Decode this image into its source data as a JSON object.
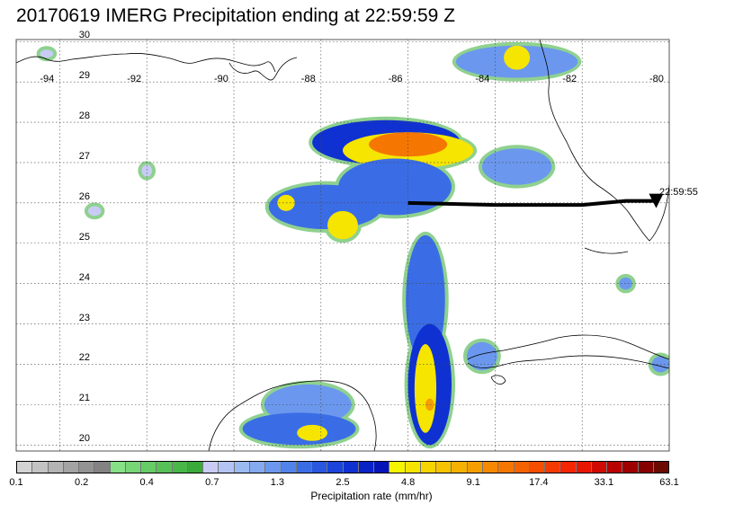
{
  "title": "20170619 IMERG Precipitation ending at 22:59:59 Z",
  "map": {
    "lon_min": -95,
    "lon_max": -80,
    "lat_min": 19.85,
    "lat_max": 30.05,
    "lon_labels": [
      "-94",
      "-92",
      "-90",
      "-88",
      "-86",
      "-84",
      "-82",
      "-80"
    ],
    "lat_labels": [
      "30",
      "29",
      "28",
      "27",
      "26",
      "25",
      "24",
      "23",
      "22",
      "21",
      "20"
    ],
    "gridlines": true,
    "track": {
      "time_label": "22:59:55",
      "points": [
        [
          -86.0,
          26.0
        ],
        [
          -84.0,
          25.95
        ],
        [
          -83.0,
          25.95
        ],
        [
          -82.0,
          25.95
        ],
        [
          -81.0,
          26.05
        ],
        [
          -80.3,
          26.05
        ]
      ],
      "end_marker": "triangle-down"
    }
  },
  "colorbar": {
    "label": "Precipitation rate (mm/hr)",
    "tick_labels": [
      "0.1",
      "0.2",
      "0.4",
      "0.7",
      "1.3",
      "2.5",
      "4.8",
      "9.1",
      "17.4",
      "33.1",
      "63.1"
    ],
    "colors": [
      "#d3d3d3",
      "#c3c3c3",
      "#b3b3b3",
      "#a3a3a3",
      "#939393",
      "#838383",
      "#86e086",
      "#76d676",
      "#66cc66",
      "#57c157",
      "#48b748",
      "#3aaa3a",
      "#c8ccf5",
      "#b2c4f2",
      "#9bbaf0",
      "#85aaf0",
      "#6b98ee",
      "#5283ea",
      "#3a6de5",
      "#2957e0",
      "#1b44da",
      "#0f31d2",
      "#0822c6",
      "#0514b8",
      "#f5f500",
      "#f5e500",
      "#f5d400",
      "#f5c300",
      "#f5b100",
      "#f59e00",
      "#f58a00",
      "#f57600",
      "#f56300",
      "#f54e00",
      "#f53a00",
      "#f52500",
      "#e81500",
      "#d00a00",
      "#b80000",
      "#9e0000",
      "#850000",
      "#6a0a00"
    ]
  },
  "precip_cells": [
    {
      "lon": -86.5,
      "lat": 27.5,
      "rx": 1.7,
      "ry": 0.55,
      "rate": 2.5
    },
    {
      "lon": -86.0,
      "lat": 27.3,
      "rx": 1.5,
      "ry": 0.45,
      "rate": 4.8
    },
    {
      "lon": -86.0,
      "lat": 27.45,
      "rx": 0.9,
      "ry": 0.3,
      "rate": 12.0
    },
    {
      "lon": -86.3,
      "lat": 26.4,
      "rx": 1.3,
      "ry": 0.7,
      "rate": 1.6
    },
    {
      "lon": -87.9,
      "lat": 25.9,
      "rx": 1.3,
      "ry": 0.55,
      "rate": 1.6
    },
    {
      "lon": -87.5,
      "lat": 25.45,
      "rx": 0.35,
      "ry": 0.35,
      "rate": 4.8
    },
    {
      "lon": -88.8,
      "lat": 26.0,
      "rx": 0.2,
      "ry": 0.2,
      "rate": 4.8
    },
    {
      "lon": -85.6,
      "lat": 23.6,
      "rx": 0.45,
      "ry": 1.6,
      "rate": 1.6
    },
    {
      "lon": -85.5,
      "lat": 21.5,
      "rx": 0.5,
      "ry": 1.5,
      "rate": 2.5
    },
    {
      "lon": -85.6,
      "lat": 21.4,
      "rx": 0.25,
      "ry": 1.1,
      "rate": 4.8
    },
    {
      "lon": -85.5,
      "lat": 21.0,
      "rx": 0.1,
      "ry": 0.15,
      "rate": 9.1
    },
    {
      "lon": -83.5,
      "lat": 26.9,
      "rx": 0.8,
      "ry": 0.45,
      "rate": 1.3
    },
    {
      "lon": -83.5,
      "lat": 29.5,
      "rx": 1.4,
      "ry": 0.4,
      "rate": 1.3
    },
    {
      "lon": -83.5,
      "lat": 29.6,
      "rx": 0.3,
      "ry": 0.3,
      "rate": 4.8
    },
    {
      "lon": -88.3,
      "lat": 21.0,
      "rx": 1.0,
      "ry": 0.5,
      "rate": 1.3
    },
    {
      "lon": -88.5,
      "lat": 20.4,
      "rx": 1.3,
      "ry": 0.4,
      "rate": 1.6
    },
    {
      "lon": -88.2,
      "lat": 20.3,
      "rx": 0.35,
      "ry": 0.2,
      "rate": 4.8
    },
    {
      "lon": -84.3,
      "lat": 22.2,
      "rx": 0.35,
      "ry": 0.35,
      "rate": 1.3
    },
    {
      "lon": -80.2,
      "lat": 22.0,
      "rx": 0.2,
      "ry": 0.2,
      "rate": 1.3
    },
    {
      "lon": -81.0,
      "lat": 24.0,
      "rx": 0.15,
      "ry": 0.15,
      "rate": 1.3
    },
    {
      "lon": -93.2,
      "lat": 25.8,
      "rx": 0.15,
      "ry": 0.12,
      "rate": 0.7
    },
    {
      "lon": -92.0,
      "lat": 26.8,
      "rx": 0.12,
      "ry": 0.15,
      "rate": 0.7
    },
    {
      "lon": -94.3,
      "lat": 29.7,
      "rx": 0.15,
      "ry": 0.1,
      "rate": 0.7
    }
  ]
}
